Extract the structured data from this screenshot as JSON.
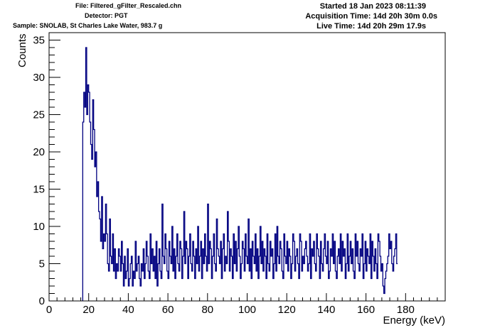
{
  "header": {
    "file": "File: Filtered_gFilter_Rescaled.chn",
    "detector": "Detector: PGT",
    "sample": "Sample: SNOLAB, St Charles Lake Water, 983.7 g",
    "started": "Started 18 Jan 2023 08:11:39",
    "acquisition": "Acquisition Time: 14d 20h 30m 0.0s",
    "live": "Live Time: 14d 20h 29m 17.9s"
  },
  "colors": {
    "line": "#000080",
    "axis": "#000000"
  },
  "chart_data": {
    "type": "line",
    "style": "histogram-step",
    "xlabel": "Energy (keV)",
    "ylabel": "Counts",
    "xlim": [
      0,
      200
    ],
    "ylim": [
      0,
      36
    ],
    "x_ticks": [
      0,
      20,
      40,
      60,
      80,
      100,
      120,
      140,
      160,
      180
    ],
    "y_ticks": [
      0,
      5,
      10,
      15,
      20,
      25,
      30,
      35
    ],
    "bin_width": 0.5,
    "x_start": 17,
    "values": [
      24,
      28,
      26,
      34,
      25,
      29,
      28,
      24,
      21,
      19,
      27,
      23,
      18,
      20,
      14,
      16,
      12,
      11,
      8,
      14,
      7,
      9,
      8,
      13,
      9,
      5,
      4,
      11,
      6,
      5,
      9,
      4,
      7,
      3,
      5,
      4,
      7,
      6,
      4,
      8,
      5,
      2,
      6,
      3,
      4,
      7,
      2,
      3,
      5,
      6,
      2,
      4,
      3,
      8,
      4,
      5,
      6,
      3,
      2,
      5,
      4,
      7,
      3,
      5,
      8,
      6,
      4,
      3,
      9,
      5,
      7,
      4,
      6,
      3,
      8,
      2,
      5,
      7,
      4,
      3,
      13,
      6,
      5,
      9,
      7,
      4,
      3,
      8,
      6,
      5,
      10,
      4,
      7,
      3,
      6,
      9,
      5,
      4,
      8,
      7,
      3,
      6,
      12,
      5,
      8,
      7,
      3,
      6,
      9,
      5,
      4,
      8,
      6,
      3,
      7,
      5,
      10,
      4,
      6,
      8,
      3,
      7,
      5,
      9,
      6,
      4,
      13,
      5,
      8,
      7,
      3,
      6,
      9,
      5,
      4,
      11,
      7,
      6,
      5,
      8,
      3,
      7,
      9,
      4,
      6,
      5,
      12,
      8,
      4,
      7,
      6,
      3,
      9,
      5,
      8,
      4,
      7,
      10,
      6,
      3,
      5,
      8,
      7,
      4,
      9,
      6,
      5,
      11,
      4,
      7,
      3,
      8,
      6,
      5,
      9,
      4,
      7,
      3,
      6,
      10,
      5,
      8,
      4,
      7,
      6,
      3,
      9,
      5,
      4,
      8,
      6,
      7,
      3,
      5,
      9,
      4,
      10,
      6,
      5,
      8,
      7,
      4,
      3,
      9,
      6,
      5,
      8,
      4,
      7,
      6,
      3,
      5,
      9,
      8,
      4,
      6,
      7,
      5,
      3,
      9,
      8,
      4,
      6,
      5,
      7,
      8,
      6,
      4,
      5,
      9,
      3,
      7,
      6,
      8,
      5,
      4,
      9,
      7,
      6,
      3,
      8,
      5,
      4,
      7,
      9,
      6,
      5,
      8,
      3,
      4,
      7,
      6,
      9,
      5,
      8,
      4,
      3,
      6,
      7,
      5,
      9,
      4,
      8,
      6,
      7,
      3,
      5,
      9,
      4,
      6,
      8,
      5,
      7,
      4,
      3,
      9,
      6,
      8,
      5,
      4,
      7,
      6,
      9,
      3,
      5,
      8,
      4,
      7,
      6,
      5,
      9,
      3,
      8,
      6,
      4,
      7,
      5,
      3,
      9,
      8,
      6,
      4,
      5,
      2,
      1,
      3,
      4,
      5,
      6,
      9,
      7,
      8,
      5,
      4,
      6,
      7,
      9,
      5
    ]
  }
}
